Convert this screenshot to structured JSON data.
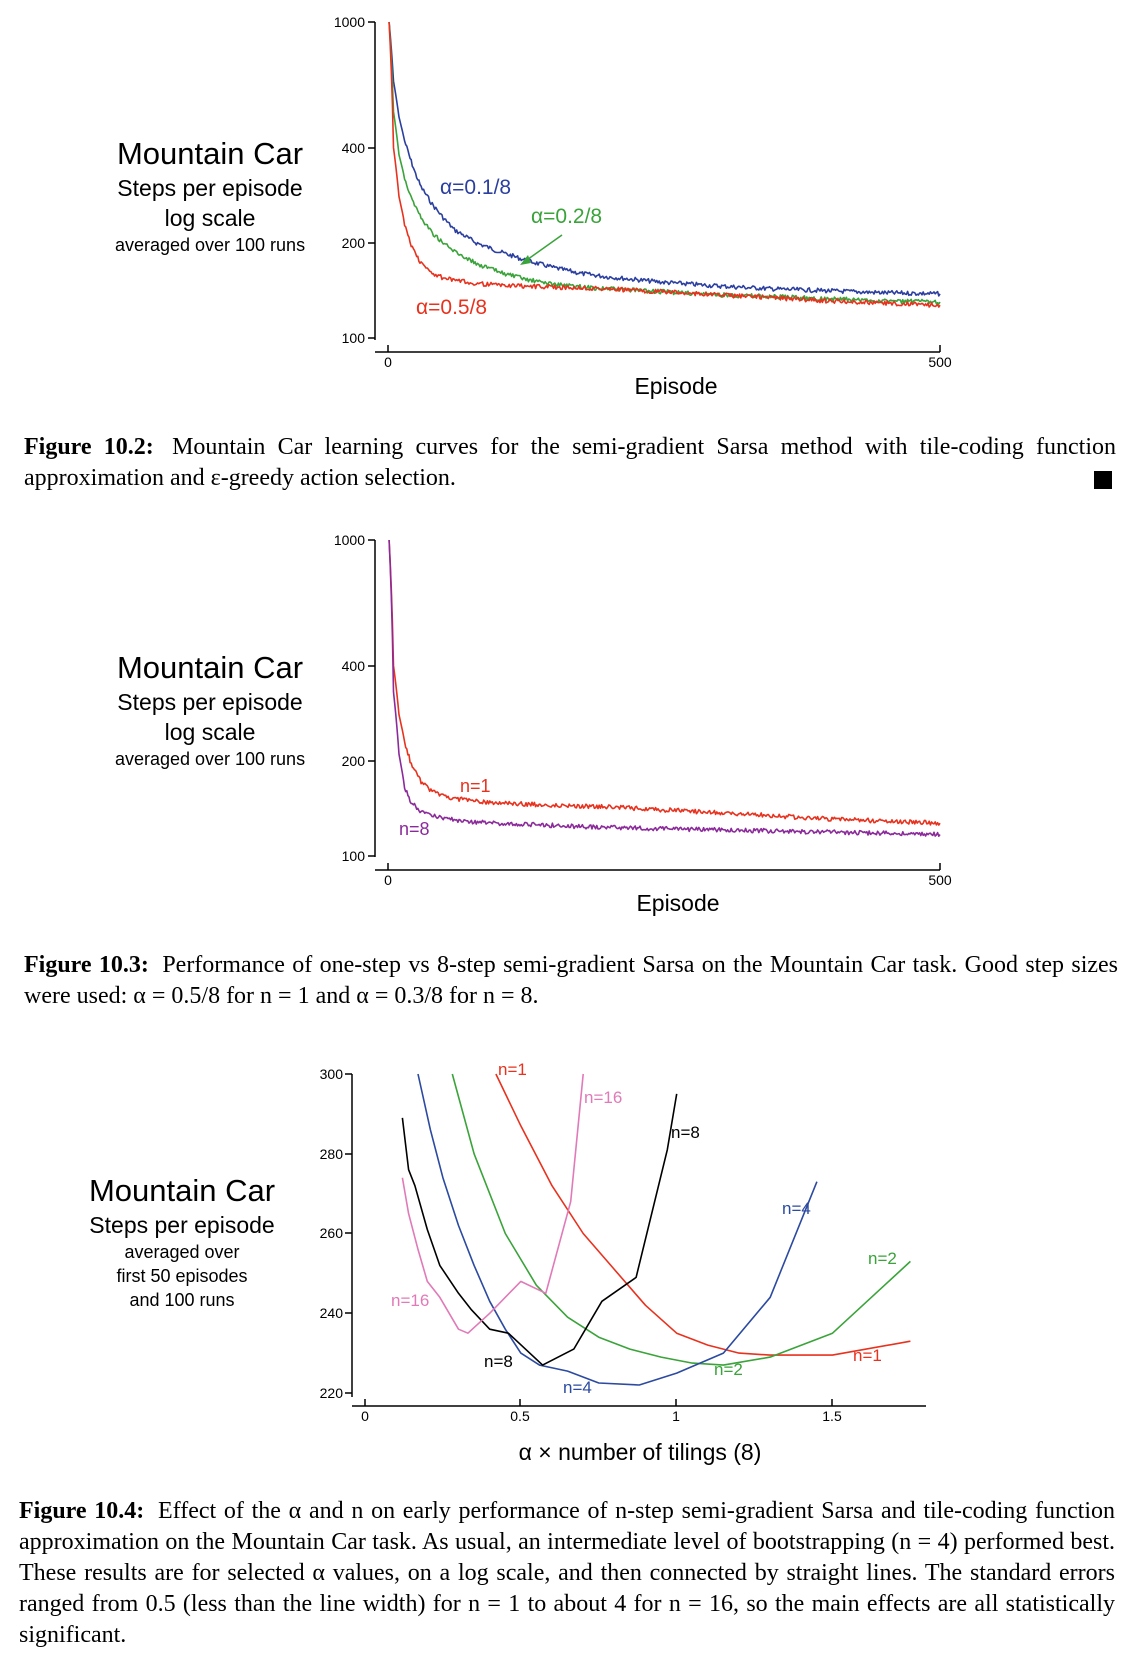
{
  "figures": [
    {
      "side_title": "Mountain Car",
      "side_lines": [
        "Steps per episode",
        "log scale",
        "averaged over 100 runs"
      ],
      "caption_label": "Figure 10.2:",
      "caption_text": "Mountain Car learning curves for the semi-gradient Sarsa method with tile-coding function approximation and ε-greedy action selection."
    },
    {
      "side_title": "Mountain Car",
      "side_lines": [
        "Steps per episode",
        "log scale",
        "averaged over 100 runs"
      ],
      "caption_label": "Figure 10.3:",
      "caption_text": "Performance of one-step vs 8-step semi-gradient Sarsa on the Mountain Car task. Good step sizes were used: α = 0.5/8 for n = 1 and α = 0.3/8 for n = 8."
    },
    {
      "side_title": "Mountain Car",
      "side_lines": [
        "Steps per episode",
        "averaged over",
        "first 50 episodes",
        "and 100 runs"
      ],
      "caption_label": "Figure 10.4:",
      "caption_text": "Effect of the α and n on early performance of n-step semi-gradient Sarsa and tile-coding function approximation on the Mountain Car task. As usual, an intermediate level of bootstrapping (n = 4) performed best. These results are for selected α values, on a log scale, and then connected by straight lines. The standard errors ranged from 0.5 (less than the line width) for n = 1 to about 4 for n = 16, so the main effects are all statistically significant."
    }
  ],
  "chart_data": [
    {
      "type": "line",
      "xlabel": "Episode",
      "ylabel": "",
      "x_ticks": [
        "0",
        "500"
      ],
      "y_ticks": [
        "100",
        "200",
        "400",
        "1000"
      ],
      "xlim": [
        0,
        500
      ],
      "ylim": [
        100,
        1000
      ],
      "y_scale": "log",
      "series": [
        {
          "name": "α=0.1/8",
          "color": "#2b3fa0",
          "x": [
            1,
            5,
            10,
            15,
            20,
            25,
            30,
            40,
            50,
            60,
            80,
            100,
            125,
            150,
            175,
            200,
            250,
            300,
            350,
            400,
            450,
            500
          ],
          "values": [
            1000,
            650,
            500,
            420,
            370,
            330,
            300,
            265,
            240,
            220,
            200,
            188,
            176,
            167,
            160,
            156,
            150,
            146,
            143,
            141,
            139,
            138
          ]
        },
        {
          "name": "α=0.2/8",
          "color": "#3aa33a",
          "x": [
            1,
            5,
            10,
            15,
            20,
            25,
            30,
            40,
            50,
            60,
            80,
            100,
            125,
            150,
            175,
            200,
            250,
            300,
            350,
            400,
            450,
            500
          ],
          "values": [
            1000,
            520,
            380,
            320,
            285,
            260,
            240,
            215,
            200,
            188,
            172,
            162,
            153,
            148,
            145,
            143,
            140,
            137,
            135,
            133,
            131,
            130
          ]
        },
        {
          "name": "α=0.5/8",
          "color": "#e8321e",
          "x": [
            1,
            5,
            10,
            15,
            20,
            25,
            30,
            40,
            50,
            60,
            80,
            100,
            125,
            150,
            175,
            200,
            250,
            300,
            350,
            400,
            450,
            500
          ],
          "values": [
            1000,
            400,
            280,
            230,
            200,
            185,
            172,
            160,
            155,
            152,
            149,
            147,
            146,
            145,
            144,
            143,
            140,
            137,
            134,
            131,
            129,
            127
          ]
        }
      ]
    },
    {
      "type": "line",
      "xlabel": "Episode",
      "ylabel": "",
      "x_ticks": [
        "0",
        "500"
      ],
      "y_ticks": [
        "100",
        "200",
        "400",
        "1000"
      ],
      "xlim": [
        0,
        500
      ],
      "ylim": [
        100,
        1000
      ],
      "y_scale": "log",
      "series": [
        {
          "name": "n=1",
          "color": "#e8321e",
          "x": [
            1,
            5,
            10,
            15,
            20,
            25,
            30,
            40,
            50,
            60,
            80,
            100,
            125,
            150,
            175,
            200,
            250,
            300,
            350,
            400,
            450,
            500
          ],
          "values": [
            1000,
            400,
            280,
            230,
            200,
            185,
            172,
            160,
            155,
            152,
            149,
            147,
            146,
            145,
            144,
            143,
            140,
            137,
            134,
            131,
            129,
            127
          ]
        },
        {
          "name": "n=8",
          "color": "#8b2a9a",
          "x": [
            1,
            5,
            10,
            15,
            20,
            25,
            30,
            40,
            50,
            60,
            80,
            100,
            125,
            150,
            175,
            200,
            250,
            300,
            350,
            400,
            450,
            500
          ],
          "values": [
            1000,
            330,
            210,
            165,
            150,
            143,
            138,
            134,
            132,
            130,
            128,
            127,
            126,
            125,
            124,
            123,
            122,
            121,
            120,
            119,
            118,
            117
          ]
        }
      ]
    },
    {
      "type": "line",
      "xlabel": "α × number of tilings (8)",
      "ylabel": "",
      "x_ticks": [
        "0",
        "0.5",
        "1",
        "1.5"
      ],
      "y_ticks": [
        "220",
        "240",
        "260",
        "280",
        "300"
      ],
      "xlim": [
        0,
        1.8
      ],
      "ylim": [
        220,
        300
      ],
      "series": [
        {
          "name": "n=1",
          "color": "#e8321e",
          "x": [
            0.42,
            0.5,
            0.6,
            0.7,
            0.8,
            0.9,
            1.0,
            1.1,
            1.2,
            1.3,
            1.5,
            1.75
          ],
          "values": [
            300,
            287,
            272,
            260,
            251,
            242,
            235,
            232,
            230,
            229.5,
            229.5,
            233
          ]
        },
        {
          "name": "n=2",
          "color": "#3aa33a",
          "x": [
            0.28,
            0.35,
            0.45,
            0.55,
            0.65,
            0.75,
            0.85,
            0.95,
            1.05,
            1.15,
            1.3,
            1.5,
            1.75
          ],
          "values": [
            300,
            280,
            260,
            247,
            239,
            234,
            231,
            229,
            227.5,
            227,
            229,
            235,
            253
          ]
        },
        {
          "name": "n=4",
          "color": "#2b4aa0",
          "x": [
            0.17,
            0.21,
            0.25,
            0.3,
            0.35,
            0.4,
            0.45,
            0.5,
            0.56,
            0.65,
            0.75,
            0.88,
            1.0,
            1.15,
            1.3,
            1.45
          ],
          "values": [
            300,
            286,
            274,
            262,
            252,
            243,
            236,
            230,
            227,
            225.5,
            222.5,
            222,
            225,
            230,
            244,
            273
          ]
        },
        {
          "name": "n=8",
          "color": "#000000",
          "x": [
            0.12,
            0.14,
            0.16,
            0.2,
            0.24,
            0.3,
            0.34,
            0.4,
            0.46,
            0.57,
            0.67,
            0.76,
            0.87,
            0.97,
            1.0
          ],
          "values": [
            289,
            276,
            272,
            261,
            252,
            245,
            241,
            236,
            235,
            227,
            231,
            243,
            249,
            281,
            295
          ]
        },
        {
          "name": "n=16",
          "color": "#e07ab8",
          "x": [
            0.12,
            0.14,
            0.17,
            0.2,
            0.24,
            0.3,
            0.33,
            0.4,
            0.5,
            0.58,
            0.66,
            0.7
          ],
          "values": [
            274,
            265,
            256,
            248,
            244,
            236,
            235,
            240,
            248,
            245,
            268,
            300
          ]
        }
      ]
    }
  ],
  "chart_labels": [
    [
      {
        "text": "α=0.1/8",
        "color": "#2b3fa0"
      },
      {
        "text": "α=0.2/8",
        "color": "#3aa33a"
      },
      {
        "text": "α=0.5/8",
        "color": "#e8321e"
      }
    ],
    [
      {
        "text": "n=1",
        "color": "#e8321e"
      },
      {
        "text": "n=8",
        "color": "#8b2a9a"
      }
    ],
    [
      {
        "text": "n=1",
        "color": "#e8321e"
      },
      {
        "text": "n=16",
        "color": "#e07ab8"
      },
      {
        "text": "n=8",
        "color": "#000000"
      },
      {
        "text": "n=4",
        "color": "#2b4aa0"
      },
      {
        "text": "n=2",
        "color": "#3aa33a"
      },
      {
        "text": "n=16",
        "color": "#e07ab8"
      },
      {
        "text": "n=8",
        "color": "#000000"
      },
      {
        "text": "n=4",
        "color": "#2b4aa0"
      },
      {
        "text": "n=2",
        "color": "#3aa33a"
      },
      {
        "text": "n=1",
        "color": "#e8321e"
      }
    ]
  ]
}
